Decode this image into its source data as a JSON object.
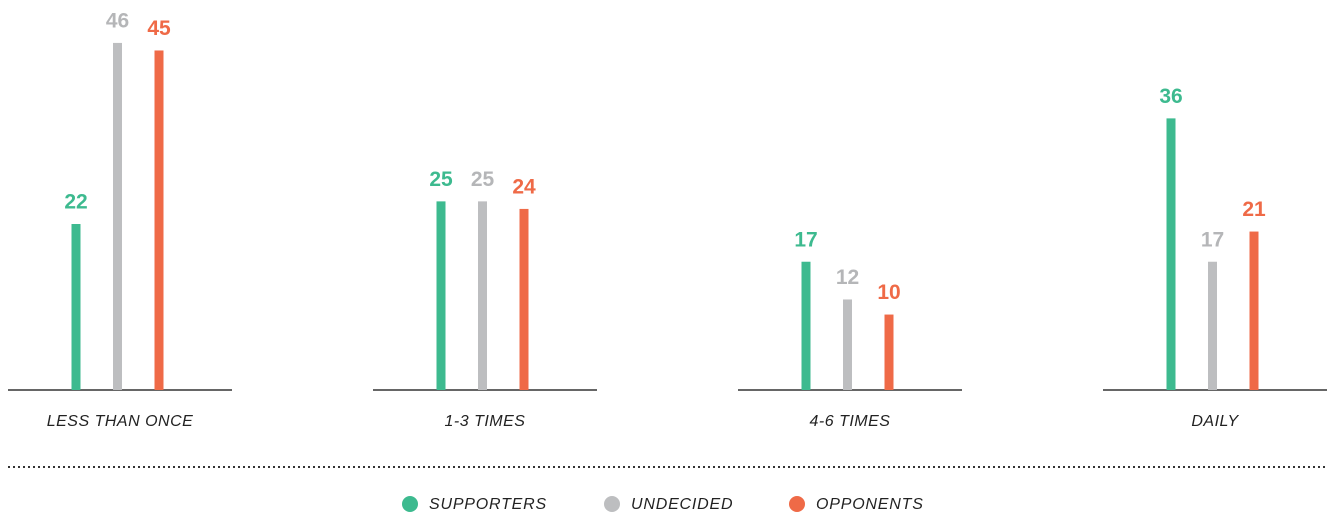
{
  "chart_data": {
    "type": "bar",
    "categories": [
      "LESS THAN ONCE",
      "1-3 TIMES",
      "4-6 TIMES",
      "DAILY"
    ],
    "series": [
      {
        "name": "SUPPORTERS",
        "color": "#3dba8f",
        "values": [
          22,
          25,
          17,
          36
        ]
      },
      {
        "name": "UNDECIDED",
        "color": "#bdbec0",
        "values": [
          46,
          25,
          12,
          17
        ]
      },
      {
        "name": "OPPONENTS",
        "color": "#ef6a47",
        "values": [
          45,
          24,
          10,
          21
        ]
      }
    ]
  }
}
